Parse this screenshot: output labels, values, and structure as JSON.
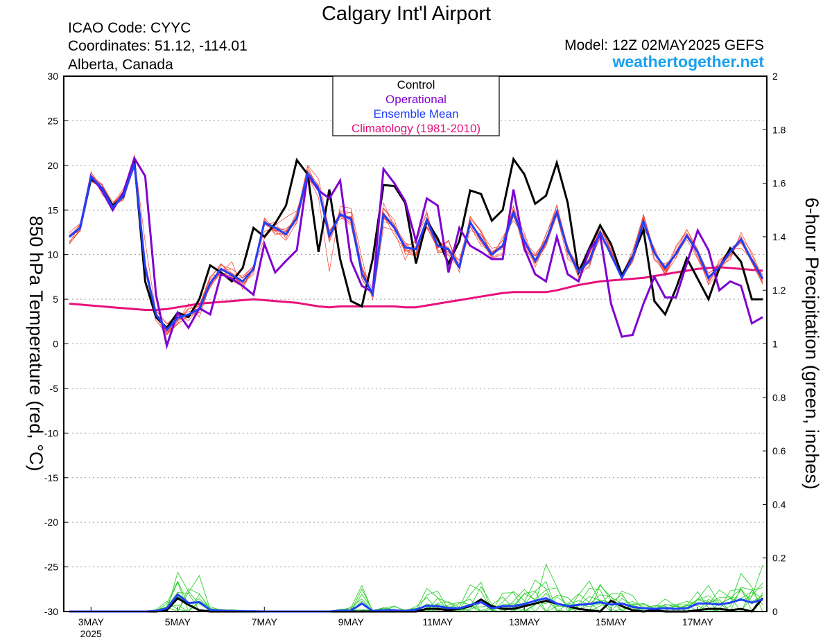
{
  "header": {
    "title": "Calgary Int'l Airport",
    "icao": "ICAO Code: CYYC",
    "coords": "Coordinates: 51.12, -114.01",
    "region": "Alberta, Canada",
    "model": "Model: 12Z 02MAY2025 GEFS",
    "site": "weathertogether.net"
  },
  "legend": {
    "control": "Control",
    "operational": "Operational",
    "mean": "Ensemble Mean",
    "climo": "Climatology (1981-2010)"
  },
  "colors": {
    "control": "#000000",
    "operational": "#8000d0",
    "mean": "#2040ff",
    "climo": "#e8107a",
    "members_temp": "#f04030",
    "members_precip": "#30d030",
    "site": "#1aa0f0"
  },
  "chart_data": {
    "type": "line",
    "left_axis": {
      "label": "850 hPa Temperature (red, °C)",
      "ylim": [
        -30,
        30
      ],
      "ticks": [
        "30",
        "25",
        "20",
        "15",
        "10",
        "5",
        "0",
        "-5",
        "-10",
        "-15",
        "-20",
        "-25",
        "-30"
      ]
    },
    "right_axis": {
      "label": "6-hour Precipitation (green, inches)",
      "ylim": [
        0,
        2
      ],
      "ticks": [
        "2",
        "1.8",
        "1.6",
        "1.4",
        "1.2",
        "1",
        "0.8",
        "0.6",
        "0.4",
        "0.2",
        "0"
      ]
    },
    "x_axis": {
      "ticks": [
        {
          "day": 3,
          "label": "3MAY",
          "sub": "2025"
        },
        {
          "day": 5,
          "label": "5MAY",
          "sub": ""
        },
        {
          "day": 7,
          "label": "7MAY",
          "sub": ""
        },
        {
          "day": 9,
          "label": "9MAY",
          "sub": ""
        },
        {
          "day": 11,
          "label": "11MAY",
          "sub": ""
        },
        {
          "day": 13,
          "label": "13MAY",
          "sub": ""
        },
        {
          "day": 15,
          "label": "15MAY",
          "sub": ""
        },
        {
          "day": 17,
          "label": "17MAY",
          "sub": ""
        }
      ]
    },
    "grid": true,
    "legend_position": "top-center",
    "x_day": [
      2.5,
      2.75,
      3.0,
      3.25,
      3.5,
      3.75,
      4.0,
      4.25,
      4.5,
      4.75,
      5.0,
      5.25,
      5.5,
      5.75,
      6.0,
      6.25,
      6.5,
      6.75,
      7.0,
      7.25,
      7.5,
      7.75,
      8.0,
      8.25,
      8.5,
      8.75,
      9.0,
      9.25,
      9.5,
      9.75,
      10.0,
      10.25,
      10.5,
      10.75,
      11.0,
      11.25,
      11.5,
      11.75,
      12.0,
      12.25,
      12.5,
      12.75,
      13.0,
      13.25,
      13.5,
      13.75,
      14.0,
      14.25,
      14.5,
      14.75,
      15.0,
      15.25,
      15.5,
      15.75,
      16.0,
      16.25,
      16.5,
      16.75,
      17.0,
      17.25,
      17.5,
      17.75,
      18.0,
      18.25,
      18.5
    ],
    "temperature": {
      "control": [
        12.0,
        13.0,
        18.5,
        17.5,
        15.5,
        16.5,
        20.5,
        7.0,
        3.0,
        1.8,
        3.5,
        3.0,
        5.0,
        8.8,
        8.0,
        7.0,
        8.5,
        13.0,
        12.0,
        13.5,
        15.5,
        20.6,
        19.0,
        10.3,
        17.3,
        9.5,
        4.8,
        4.2,
        9.5,
        17.8,
        17.7,
        15.8,
        9.0,
        13.8,
        11.8,
        9.0,
        11.5,
        17.2,
        16.8,
        13.8,
        15.0,
        20.7,
        19.0,
        15.7,
        16.6,
        20.3,
        15.8,
        8.0,
        10.7,
        13.3,
        11.2,
        7.7,
        9.8,
        12.8,
        4.8,
        3.3,
        6.2,
        9.6,
        7.3,
        5.0,
        8.5,
        10.7,
        9.2,
        5.0,
        5.0
      ],
      "operational": [
        12.0,
        13.0,
        18.8,
        17.2,
        15.0,
        17.0,
        20.8,
        18.8,
        5.5,
        -0.2,
        3.5,
        1.8,
        4.0,
        3.3,
        7.8,
        7.3,
        6.5,
        5.5,
        11.2,
        8.0,
        9.3,
        10.5,
        19.0,
        17.2,
        16.3,
        18.3,
        9.3,
        6.5,
        5.8,
        19.6,
        18.0,
        16.0,
        11.5,
        16.3,
        15.5,
        8.0,
        13.0,
        11.0,
        10.3,
        9.5,
        9.5,
        17.3,
        10.7,
        7.8,
        7.0,
        12.0,
        7.8,
        7.0,
        10.5,
        12.2,
        4.5,
        0.8,
        1.0,
        4.5,
        7.5,
        5.2,
        5.2,
        9.0,
        12.7,
        10.5,
        6.0,
        7.0,
        6.5,
        2.3,
        3.0
      ],
      "mean": [
        12.0,
        13.0,
        18.7,
        17.5,
        15.3,
        16.6,
        20.2,
        8.6,
        3.3,
        1.6,
        2.9,
        3.3,
        3.9,
        6.8,
        8.4,
        7.7,
        7.0,
        8.4,
        13.6,
        13.0,
        12.3,
        14.1,
        19.1,
        17.4,
        12.1,
        14.5,
        14.0,
        7.9,
        5.6,
        14.5,
        13.0,
        10.8,
        10.6,
        13.9,
        11.0,
        10.6,
        8.6,
        13.6,
        11.8,
        10.0,
        11.0,
        14.7,
        11.5,
        9.3,
        11.5,
        14.8,
        10.5,
        8.1,
        9.3,
        12.5,
        10.0,
        7.4,
        9.7,
        13.7,
        10.2,
        8.5,
        10.1,
        12.1,
        10.3,
        7.4,
        8.6,
        10.3,
        11.7,
        9.4,
        7.3
      ],
      "climatology": [
        4.5,
        4.4,
        4.3,
        4.2,
        4.1,
        4.0,
        3.9,
        3.8,
        3.8,
        3.9,
        4.1,
        4.3,
        4.5,
        4.6,
        4.7,
        4.8,
        4.9,
        5.0,
        4.9,
        4.8,
        4.7,
        4.6,
        4.4,
        4.2,
        4.1,
        4.2,
        4.2,
        4.2,
        4.2,
        4.2,
        4.2,
        4.1,
        4.1,
        4.3,
        4.5,
        4.7,
        4.9,
        5.1,
        5.3,
        5.5,
        5.7,
        5.8,
        5.8,
        5.8,
        5.8,
        6.0,
        6.3,
        6.6,
        6.8,
        7.0,
        7.1,
        7.2,
        7.3,
        7.4,
        7.6,
        7.8,
        8.0,
        8.2,
        8.4,
        8.5,
        8.6,
        8.5,
        8.4,
        8.3,
        8.2
      ],
      "members": [
        [
          12.0,
          13.4,
          19.3,
          16.8,
          15.4,
          17.0,
          20.8,
          11.4,
          3.5,
          1.3,
          2.5,
          4.5,
          3.0,
          6.7,
          8.0,
          9.2,
          6.1,
          8.6,
          11.8,
          13.3,
          14.2,
          14.9,
          18.8,
          16.4,
          8.1,
          15.4,
          15.2,
          9.6,
          4.9,
          13.1,
          12.7,
          9.4,
          11.9,
          14.8,
          10.2,
          11.6,
          8.6,
          13.7,
          11.8,
          9.6,
          12.0,
          13.8,
          12.1,
          8.6,
          11.4,
          14.4,
          9.5,
          8.6,
          9.3,
          13.3,
          10.4,
          7.7,
          10.4,
          14.4,
          10.3,
          8.1,
          11.0,
          12.4,
          10.5,
          7.9,
          8.8,
          9.4,
          12.5,
          10.0,
          7.1
        ],
        [
          11.2,
          12.8,
          18.9,
          17.9,
          15.5,
          16.1,
          21.2,
          9.2,
          3.4,
          1.1,
          2.6,
          4.0,
          4.2,
          7.4,
          9.0,
          7.4,
          7.4,
          8.7,
          14.0,
          12.2,
          12.6,
          14.4,
          20.0,
          18.5,
          12.7,
          14.3,
          14.8,
          8.7,
          5.3,
          15.8,
          13.0,
          11.1,
          10.0,
          13.1,
          11.6,
          10.8,
          8.5,
          12.7,
          12.3,
          10.1,
          11.6,
          15.0,
          10.3,
          9.9,
          11.8,
          14.5,
          11.0,
          7.8,
          9.2,
          11.8,
          10.3,
          7.3,
          10.4,
          13.4,
          10.4,
          8.1,
          10.0,
          11.7,
          9.5,
          7.2,
          8.7,
          10.0,
          11.9,
          9.1,
          7.1
        ],
        [
          12.4,
          12.6,
          18.5,
          17.5,
          14.9,
          16.8,
          19.7,
          8.9,
          3.4,
          1.3,
          3.3,
          2.6,
          4.1,
          6.5,
          8.5,
          7.9,
          7.0,
          8.3,
          13.4,
          13.6,
          11.8,
          14.6,
          19.5,
          17.3,
          11.4,
          14.5,
          13.5,
          7.6,
          5.5,
          14.2,
          13.2,
          10.5,
          9.8,
          14.2,
          11.8,
          10.0,
          9.4,
          13.9,
          11.3,
          10.2,
          11.1,
          15.4,
          11.2,
          9.8,
          11.1,
          15.0,
          10.6,
          8.8,
          9.5,
          12.8,
          9.7,
          7.6,
          9.6,
          13.9,
          9.6,
          7.9,
          10.2,
          12.3,
          9.9,
          6.7,
          9.4,
          10.2,
          12.1,
          9.1,
          6.9
        ],
        [
          12.5,
          13.5,
          18.3,
          17.9,
          15.9,
          16.6,
          20.0,
          8.2,
          3.8,
          2.2,
          3.0,
          3.3,
          3.5,
          6.5,
          7.9,
          7.9,
          7.6,
          8.7,
          13.4,
          12.7,
          11.6,
          13.6,
          19.4,
          17.8,
          12.0,
          14.9,
          14.7,
          7.3,
          5.3,
          13.7,
          13.3,
          11.3,
          10.9,
          13.8,
          11.0,
          10.3,
          8.7,
          13.1,
          11.5,
          10.1,
          11.6,
          14.6,
          11.7,
          9.2,
          12.3,
          14.9,
          10.5,
          7.5,
          8.8,
          12.5,
          10.3,
          7.8,
          9.2,
          13.1,
          10.4,
          8.3,
          10.3,
          12.8,
          10.3,
          7.1,
          8.3,
          10.4,
          11.3,
          9.5,
          7.1
        ],
        [
          12.1,
          13.0,
          18.2,
          17.9,
          15.4,
          17.1,
          20.1,
          8.2,
          2.6,
          1.1,
          2.3,
          3.9,
          4.3,
          7.6,
          7.8,
          7.6,
          6.8,
          7.8,
          13.8,
          12.4,
          12.2,
          14.8,
          18.5,
          17.5,
          12.1,
          14.3,
          13.3,
          7.7,
          5.8,
          15.2,
          13.9,
          10.1,
          9.9,
          13.1,
          10.7,
          11.6,
          8.0,
          14.0,
          12.6,
          9.6,
          10.0,
          15.5,
          11.0,
          9.2,
          11.8,
          14.8,
          10.6,
          7.8,
          10.0,
          12.5,
          10.1,
          7.8,
          10.0,
          14.5,
          10.4,
          8.2,
          10.3,
          12.3,
          10.3,
          7.4,
          8.9,
          10.7,
          10.7,
          9.6,
          7.7
        ],
        [
          11.3,
          13.4,
          18.8,
          17.8,
          15.7,
          17.4,
          20.3,
          8.4,
          3.5,
          1.0,
          2.2,
          3.2,
          3.9,
          6.4,
          8.9,
          7.9,
          6.4,
          8.7,
          12.6,
          13.1,
          12.7,
          14.0,
          19.0,
          17.7,
          12.5,
          14.7,
          13.7,
          8.6,
          6.1,
          15.2,
          13.4,
          10.3,
          10.9,
          13.6,
          10.5,
          9.9,
          8.5,
          14.3,
          12.5,
          10.7,
          11.0,
          15.0,
          12.4,
          9.0,
          11.1,
          15.6,
          10.3,
          8.6,
          9.0,
          13.2,
          10.6,
          7.3,
          9.4,
          14.5,
          10.1,
          7.7,
          10.8,
          12.8,
          10.6,
          7.0,
          8.4,
          9.7,
          11.9,
          10.3,
          7.3
        ],
        [
          11.5,
          12.7,
          18.7,
          17.2,
          15.7,
          16.7,
          20.9,
          8.6,
          3.1,
          1.8,
          2.2,
          3.1,
          3.5,
          6.9,
          7.9,
          7.1,
          6.4,
          8.4,
          14.1,
          12.8,
          12.1,
          14.1,
          19.0,
          17.2,
          12.7,
          14.0,
          14.3,
          7.3,
          5.3,
          14.7,
          13.2,
          11.3,
          10.1,
          13.0,
          10.8,
          11.5,
          8.5,
          14.2,
          12.7,
          10.0,
          10.9,
          14.8,
          11.6,
          9.4,
          12.2,
          15.5,
          9.9,
          8.4,
          10.1,
          13.2,
          10.2,
          7.8,
          9.6,
          13.4,
          10.6,
          7.6,
          10.4,
          12.1,
          10.4,
          7.6,
          8.7,
          9.9,
          11.7,
          9.1,
          6.7
        ],
        [
          12.1,
          13.0,
          19.2,
          17.6,
          15.2,
          16.4,
          20.0,
          8.8,
          3.7,
          2.3,
          3.1,
          3.6,
          4.0,
          7.4,
          8.8,
          8.4,
          7.4,
          8.4,
          13.6,
          12.6,
          12.9,
          13.8,
          19.9,
          17.1,
          12.3,
          14.3,
          14.2,
          8.4,
          5.4,
          14.1,
          13.1,
          11.0,
          11.4,
          14.6,
          10.2,
          10.4,
          9.0,
          13.7,
          11.5,
          9.7,
          10.2,
          14.8,
          11.0,
          9.9,
          11.0,
          14.5,
          10.7,
          8.5,
          8.5,
          12.7,
          10.9,
          7.6,
          9.6,
          14.2,
          9.3,
          9.0,
          9.7,
          12.3,
          9.6,
          7.3,
          9.1,
          10.7,
          11.5,
          9.5,
          7.1
        ],
        [
          11.2,
          12.7,
          18.2,
          17.5,
          15.7,
          17.1,
          20.7,
          8.8,
          3.0,
          1.0,
          3.3,
          3.2,
          4.0,
          6.3,
          8.2,
          8.4,
          7.4,
          8.2,
          13.5,
          12.7,
          12.9,
          13.9,
          19.0,
          17.1,
          11.6,
          14.8,
          14.1,
          8.6,
          5.3,
          14.0,
          13.4,
          10.6,
          10.2,
          13.6,
          11.5,
          10.7,
          9.3,
          13.1,
          12.2,
          10.3,
          10.8,
          14.3,
          11.4,
          10.1,
          11.5,
          15.5,
          10.9,
          7.5,
          9.6,
          12.8,
          9.8,
          7.4,
          9.2,
          13.0,
          10.8,
          7.8,
          9.6,
          12.3,
          10.2,
          6.6,
          8.2,
          10.2,
          11.4,
          9.1,
          6.8
        ],
        [
          12.2,
          12.6,
          18.4,
          17.6,
          15.6,
          16.2,
          19.9,
          8.9,
          3.2,
          1.4,
          2.7,
          3.1,
          4.4,
          7.2,
          8.0,
          7.5,
          6.7,
          8.1,
          13.8,
          12.7,
          12.6,
          13.6,
          18.6,
          17.2,
          11.9,
          14.5,
          13.5,
          7.7,
          5.8,
          14.4,
          12.2,
          10.5,
          10.0,
          14.1,
          11.2,
          10.3,
          8.5,
          13.2,
          11.0,
          10.4,
          10.6,
          14.8,
          10.8,
          9.0,
          11.0,
          14.4,
          10.2,
          8.5,
          9.0,
          12.0,
          10.6,
          7.4,
          9.5,
          14.0,
          10.0,
          8.8,
          10.1,
          12.3,
          10.3,
          7.9,
          8.7,
          10.5,
          11.6,
          9.3,
          7.7
        ]
      ]
    },
    "precipitation": {
      "control": [
        0,
        0,
        0,
        0,
        0,
        0,
        0,
        0,
        0,
        0.005,
        0.05,
        0.025,
        0.005,
        0,
        0,
        0,
        0,
        0,
        0,
        0,
        0,
        0,
        0,
        0,
        0,
        0,
        0,
        0,
        0,
        0,
        0,
        0,
        0,
        0.01,
        0.01,
        0.005,
        0.01,
        0.02,
        0.045,
        0.02,
        0.01,
        0.01,
        0.02,
        0.03,
        0.04,
        0.03,
        0.02,
        0.01,
        0.005,
        0,
        0.04,
        0.02,
        0.005,
        0,
        0.005,
        0,
        0,
        0,
        0.005,
        0.01,
        0.01,
        0.005,
        0.01,
        0,
        0.05
      ],
      "mean": [
        0,
        0,
        0,
        0,
        0,
        0,
        0,
        0,
        0.002,
        0.012,
        0.064,
        0.032,
        0.035,
        0.006,
        0.003,
        0.002,
        0.001,
        0.001,
        0,
        0,
        0,
        0,
        0,
        0,
        0,
        0.003,
        0.004,
        0.03,
        0.002,
        0.005,
        0.005,
        0.002,
        0.007,
        0.022,
        0.02,
        0.013,
        0.012,
        0.024,
        0.035,
        0.012,
        0.02,
        0.02,
        0.028,
        0.04,
        0.05,
        0.03,
        0.02,
        0.025,
        0.028,
        0.035,
        0.026,
        0.03,
        0.017,
        0.012,
        0.01,
        0.012,
        0.01,
        0.012,
        0.03,
        0.03,
        0.026,
        0.033,
        0.045,
        0.033,
        0.045
      ]
    }
  }
}
